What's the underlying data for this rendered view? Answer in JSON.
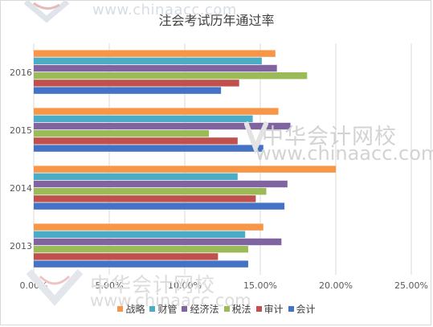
{
  "watermark": {
    "top_url": "www.chinaacc.com",
    "mid_cn": "中华会计网校",
    "mid_url": "www.chinaacc.com",
    "bottom_cn": "中华会计网校",
    "bottom_url": "www.chinaacc.com",
    "logo_color": "#c62828"
  },
  "chart_data": {
    "type": "bar",
    "orientation": "horizontal",
    "title": "注会考试历年通过率",
    "categories": [
      "2013",
      "2014",
      "2015",
      "2016"
    ],
    "series": [
      {
        "name": "会计",
        "color": "#4472c4",
        "values": [
          14.2,
          16.6,
          15.2,
          12.4
        ]
      },
      {
        "name": "审计",
        "color": "#c0504d",
        "values": [
          12.2,
          14.7,
          13.5,
          13.6
        ]
      },
      {
        "name": "税法",
        "color": "#9bbb59",
        "values": [
          14.2,
          15.4,
          11.6,
          18.1
        ]
      },
      {
        "name": "经济法",
        "color": "#8064a2",
        "values": [
          16.4,
          16.8,
          17.0,
          16.1
        ]
      },
      {
        "name": "财管",
        "color": "#4bacc6",
        "values": [
          14.0,
          13.5,
          14.5,
          15.1
        ]
      },
      {
        "name": "战略",
        "color": "#f79646",
        "values": [
          15.2,
          20.0,
          16.2,
          16.0
        ]
      }
    ],
    "legend_order": [
      "战略",
      "财管",
      "经济法",
      "税法",
      "审计",
      "会计"
    ],
    "xlim": [
      0,
      25
    ],
    "x_ticks": [
      0,
      5,
      10,
      15,
      20,
      25
    ],
    "x_tick_labels": [
      "0.00%",
      "5.00%",
      "10.00%",
      "15.00%",
      "20.00%",
      "25.00%"
    ],
    "grid": true,
    "legend_position": "bottom"
  }
}
